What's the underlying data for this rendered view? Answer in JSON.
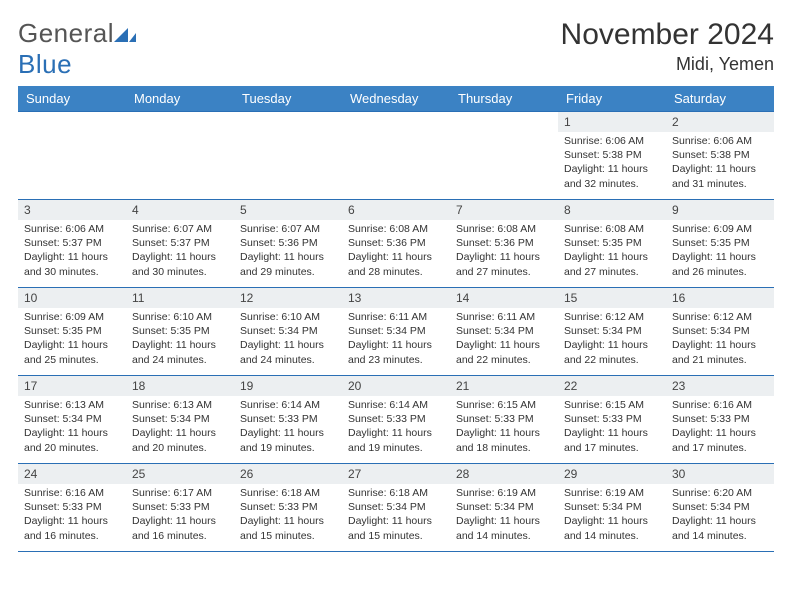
{
  "brand": {
    "word1": "General",
    "word2": "Blue"
  },
  "title": "November 2024",
  "location": "Midi, Yemen",
  "colors": {
    "header_bg": "#3b82c4",
    "header_text": "#ffffff",
    "border": "#2a6fb5",
    "daynum_bg": "#eceff1",
    "text": "#333333",
    "brand_gray": "#555555",
    "brand_blue": "#2a6fb5",
    "page_bg": "#ffffff"
  },
  "typography": {
    "title_fontsize": 30,
    "location_fontsize": 18,
    "header_fontsize": 13,
    "daynum_fontsize": 12,
    "body_fontsize": 10.5
  },
  "day_headers": [
    "Sunday",
    "Monday",
    "Tuesday",
    "Wednesday",
    "Thursday",
    "Friday",
    "Saturday"
  ],
  "weeks": [
    [
      null,
      null,
      null,
      null,
      null,
      {
        "n": "1",
        "sr": "Sunrise: 6:06 AM",
        "ss": "Sunset: 5:38 PM",
        "dl": "Daylight: 11 hours and 32 minutes."
      },
      {
        "n": "2",
        "sr": "Sunrise: 6:06 AM",
        "ss": "Sunset: 5:38 PM",
        "dl": "Daylight: 11 hours and 31 minutes."
      }
    ],
    [
      {
        "n": "3",
        "sr": "Sunrise: 6:06 AM",
        "ss": "Sunset: 5:37 PM",
        "dl": "Daylight: 11 hours and 30 minutes."
      },
      {
        "n": "4",
        "sr": "Sunrise: 6:07 AM",
        "ss": "Sunset: 5:37 PM",
        "dl": "Daylight: 11 hours and 30 minutes."
      },
      {
        "n": "5",
        "sr": "Sunrise: 6:07 AM",
        "ss": "Sunset: 5:36 PM",
        "dl": "Daylight: 11 hours and 29 minutes."
      },
      {
        "n": "6",
        "sr": "Sunrise: 6:08 AM",
        "ss": "Sunset: 5:36 PM",
        "dl": "Daylight: 11 hours and 28 minutes."
      },
      {
        "n": "7",
        "sr": "Sunrise: 6:08 AM",
        "ss": "Sunset: 5:36 PM",
        "dl": "Daylight: 11 hours and 27 minutes."
      },
      {
        "n": "8",
        "sr": "Sunrise: 6:08 AM",
        "ss": "Sunset: 5:35 PM",
        "dl": "Daylight: 11 hours and 27 minutes."
      },
      {
        "n": "9",
        "sr": "Sunrise: 6:09 AM",
        "ss": "Sunset: 5:35 PM",
        "dl": "Daylight: 11 hours and 26 minutes."
      }
    ],
    [
      {
        "n": "10",
        "sr": "Sunrise: 6:09 AM",
        "ss": "Sunset: 5:35 PM",
        "dl": "Daylight: 11 hours and 25 minutes."
      },
      {
        "n": "11",
        "sr": "Sunrise: 6:10 AM",
        "ss": "Sunset: 5:35 PM",
        "dl": "Daylight: 11 hours and 24 minutes."
      },
      {
        "n": "12",
        "sr": "Sunrise: 6:10 AM",
        "ss": "Sunset: 5:34 PM",
        "dl": "Daylight: 11 hours and 24 minutes."
      },
      {
        "n": "13",
        "sr": "Sunrise: 6:11 AM",
        "ss": "Sunset: 5:34 PM",
        "dl": "Daylight: 11 hours and 23 minutes."
      },
      {
        "n": "14",
        "sr": "Sunrise: 6:11 AM",
        "ss": "Sunset: 5:34 PM",
        "dl": "Daylight: 11 hours and 22 minutes."
      },
      {
        "n": "15",
        "sr": "Sunrise: 6:12 AM",
        "ss": "Sunset: 5:34 PM",
        "dl": "Daylight: 11 hours and 22 minutes."
      },
      {
        "n": "16",
        "sr": "Sunrise: 6:12 AM",
        "ss": "Sunset: 5:34 PM",
        "dl": "Daylight: 11 hours and 21 minutes."
      }
    ],
    [
      {
        "n": "17",
        "sr": "Sunrise: 6:13 AM",
        "ss": "Sunset: 5:34 PM",
        "dl": "Daylight: 11 hours and 20 minutes."
      },
      {
        "n": "18",
        "sr": "Sunrise: 6:13 AM",
        "ss": "Sunset: 5:34 PM",
        "dl": "Daylight: 11 hours and 20 minutes."
      },
      {
        "n": "19",
        "sr": "Sunrise: 6:14 AM",
        "ss": "Sunset: 5:33 PM",
        "dl": "Daylight: 11 hours and 19 minutes."
      },
      {
        "n": "20",
        "sr": "Sunrise: 6:14 AM",
        "ss": "Sunset: 5:33 PM",
        "dl": "Daylight: 11 hours and 19 minutes."
      },
      {
        "n": "21",
        "sr": "Sunrise: 6:15 AM",
        "ss": "Sunset: 5:33 PM",
        "dl": "Daylight: 11 hours and 18 minutes."
      },
      {
        "n": "22",
        "sr": "Sunrise: 6:15 AM",
        "ss": "Sunset: 5:33 PM",
        "dl": "Daylight: 11 hours and 17 minutes."
      },
      {
        "n": "23",
        "sr": "Sunrise: 6:16 AM",
        "ss": "Sunset: 5:33 PM",
        "dl": "Daylight: 11 hours and 17 minutes."
      }
    ],
    [
      {
        "n": "24",
        "sr": "Sunrise: 6:16 AM",
        "ss": "Sunset: 5:33 PM",
        "dl": "Daylight: 11 hours and 16 minutes."
      },
      {
        "n": "25",
        "sr": "Sunrise: 6:17 AM",
        "ss": "Sunset: 5:33 PM",
        "dl": "Daylight: 11 hours and 16 minutes."
      },
      {
        "n": "26",
        "sr": "Sunrise: 6:18 AM",
        "ss": "Sunset: 5:33 PM",
        "dl": "Daylight: 11 hours and 15 minutes."
      },
      {
        "n": "27",
        "sr": "Sunrise: 6:18 AM",
        "ss": "Sunset: 5:34 PM",
        "dl": "Daylight: 11 hours and 15 minutes."
      },
      {
        "n": "28",
        "sr": "Sunrise: 6:19 AM",
        "ss": "Sunset: 5:34 PM",
        "dl": "Daylight: 11 hours and 14 minutes."
      },
      {
        "n": "29",
        "sr": "Sunrise: 6:19 AM",
        "ss": "Sunset: 5:34 PM",
        "dl": "Daylight: 11 hours and 14 minutes."
      },
      {
        "n": "30",
        "sr": "Sunrise: 6:20 AM",
        "ss": "Sunset: 5:34 PM",
        "dl": "Daylight: 11 hours and 14 minutes."
      }
    ]
  ]
}
